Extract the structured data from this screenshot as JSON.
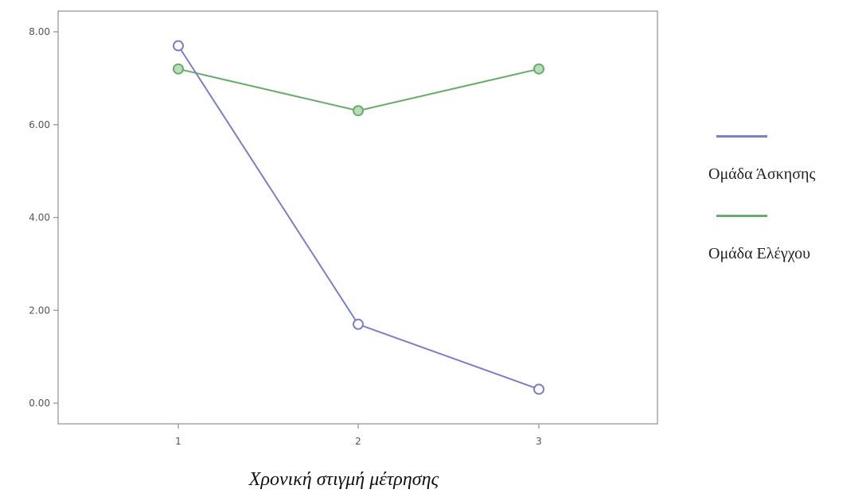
{
  "chart_data": {
    "type": "line",
    "title": "",
    "xlabel": "Χρονική στιγμή μέτρησης",
    "ylabel": "",
    "categories": [
      "1",
      "2",
      "3"
    ],
    "yticks": [
      "0.00",
      "2.00",
      "4.00",
      "6.00",
      "8.00"
    ],
    "ylim": [
      0,
      8
    ],
    "grid": false,
    "legend_position": "right",
    "series": [
      {
        "name": "Ομάδα Άσκησης",
        "values": [
          7.7,
          1.7,
          0.3
        ],
        "color": "#7b7fc4"
      },
      {
        "name": "Ομάδα Ελέγχου",
        "values": [
          7.2,
          6.3,
          7.2
        ],
        "color": "#6aab6e"
      }
    ]
  }
}
